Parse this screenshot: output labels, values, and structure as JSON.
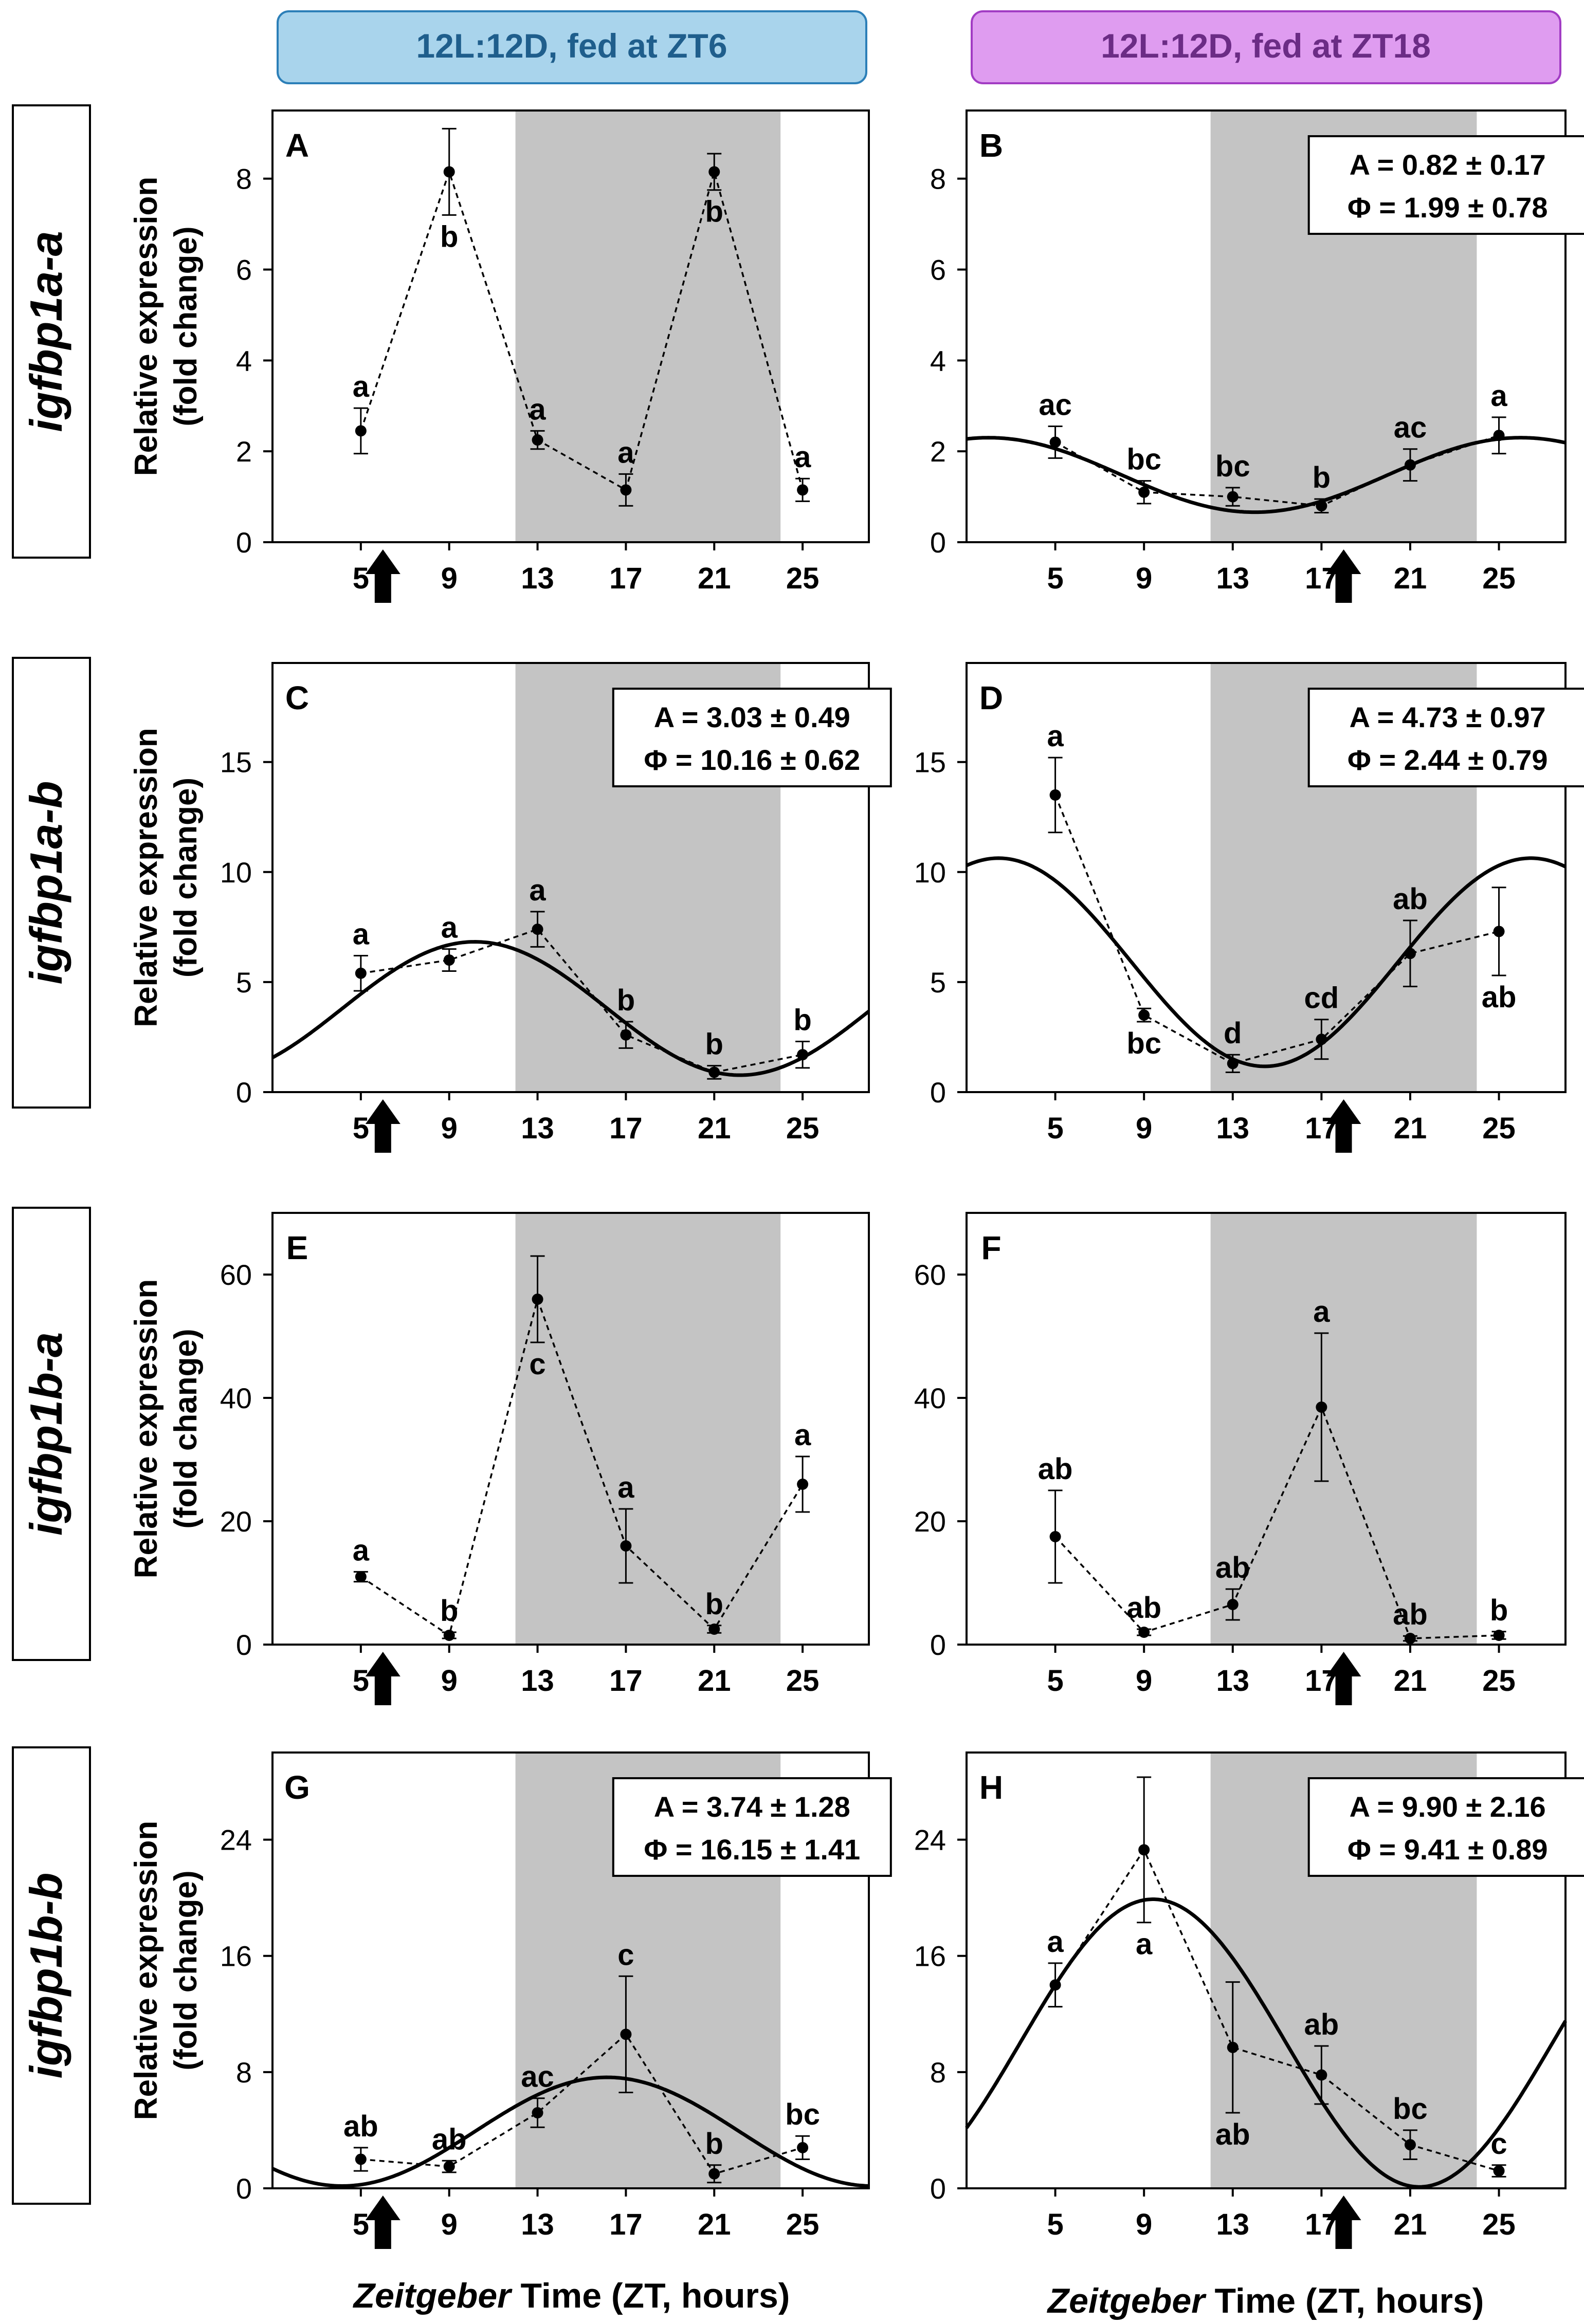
{
  "headers": {
    "left": "12L:12D, fed at ZT6",
    "right": "12L:12D, fed at ZT18",
    "left_colors": {
      "fill": "#a9d4ec",
      "stroke": "#2c7fb8",
      "text": "#1f5e8c"
    },
    "right_colors": {
      "fill": "#df9cf0",
      "stroke": "#a23cc4",
      "text": "#6b2c85"
    }
  },
  "genes": [
    "igfbp1a-a",
    "igfbp1a-b",
    "igfbp1b-a",
    "igfbp1b-b"
  ],
  "ylabel_line1": "Relative expression",
  "ylabel_line2": "(fold change)",
  "xlabel_italic": "Zeitgeber",
  "xlabel_rest": " Time (ZT, hours)",
  "chart_data": [
    {
      "id": "A",
      "type": "line",
      "xticks": [
        5,
        9,
        13,
        17,
        21,
        25
      ],
      "xlim": [
        1,
        28
      ],
      "ylim": [
        0,
        9.5
      ],
      "yticks": [
        0,
        2,
        4,
        6,
        8
      ],
      "dark_period": [
        12,
        24
      ],
      "feeding_zt": 6,
      "x": [
        5,
        9,
        13,
        17,
        21,
        25
      ],
      "values": [
        2.45,
        8.15,
        2.25,
        1.15,
        8.15,
        1.15
      ],
      "errors": [
        0.5,
        0.95,
        0.2,
        0.35,
        0.4,
        0.25
      ],
      "sig": [
        "a",
        "b",
        "a",
        "a",
        "b",
        "a"
      ],
      "sig_pos": [
        "above",
        "below",
        "above",
        "above",
        "below",
        "above"
      ],
      "fit": null
    },
    {
      "id": "B",
      "type": "line",
      "xticks": [
        5,
        9,
        13,
        17,
        21,
        25
      ],
      "xlim": [
        1,
        28
      ],
      "ylim": [
        0,
        9.5
      ],
      "yticks": [
        0,
        2,
        4,
        6,
        8
      ],
      "dark_period": [
        12,
        24
      ],
      "feeding_zt": 18,
      "x": [
        5,
        9,
        13,
        17,
        21,
        25
      ],
      "values": [
        2.2,
        1.1,
        1.0,
        0.8,
        1.7,
        2.35
      ],
      "errors": [
        0.35,
        0.25,
        0.2,
        0.15,
        0.35,
        0.4
      ],
      "sig": [
        "ac",
        "bc",
        "bc",
        "b",
        "ac",
        "a"
      ],
      "sig_pos": [
        "above",
        "above",
        "above",
        "above",
        "above",
        "above"
      ],
      "stats": [
        "A = 0.82 ± 0.17",
        "Φ = 1.99 ± 0.78"
      ],
      "fit": {
        "mesor": 1.48,
        "amplitude": 0.82,
        "acrophase": 1.99
      }
    },
    {
      "id": "C",
      "type": "line",
      "xticks": [
        5,
        9,
        13,
        17,
        21,
        25
      ],
      "xlim": [
        1,
        28
      ],
      "ylim": [
        0,
        19.5
      ],
      "yticks": [
        0,
        5,
        10,
        15
      ],
      "dark_period": [
        12,
        24
      ],
      "feeding_zt": 6,
      "x": [
        5,
        9,
        13,
        17,
        21,
        25
      ],
      "values": [
        5.4,
        6.0,
        7.4,
        2.6,
        0.9,
        1.7
      ],
      "errors": [
        0.8,
        0.5,
        0.8,
        0.6,
        0.3,
        0.6
      ],
      "sig": [
        "a",
        "a",
        "a",
        "b",
        "b",
        "b"
      ],
      "sig_pos": [
        "above",
        "above",
        "above",
        "above",
        "above",
        "above"
      ],
      "stats": [
        "A = 3.03 ± 0.49",
        "Φ = 10.16 ± 0.62"
      ],
      "fit": {
        "mesor": 3.8,
        "amplitude": 3.03,
        "acrophase": 10.16
      }
    },
    {
      "id": "D",
      "type": "line",
      "xticks": [
        5,
        9,
        13,
        17,
        21,
        25
      ],
      "xlim": [
        1,
        28
      ],
      "ylim": [
        0,
        19.5
      ],
      "yticks": [
        0,
        5,
        10,
        15
      ],
      "dark_period": [
        12,
        24
      ],
      "feeding_zt": 18,
      "x": [
        5,
        9,
        13,
        17,
        21,
        25
      ],
      "values": [
        13.5,
        3.5,
        1.3,
        2.4,
        6.3,
        7.3
      ],
      "errors": [
        1.7,
        0.3,
        0.4,
        0.9,
        1.5,
        2.0
      ],
      "sig": [
        "a",
        "bc",
        "d",
        "cd",
        "ab",
        "ab"
      ],
      "sig_pos": [
        "above",
        "below",
        "above",
        "above",
        "above",
        "below"
      ],
      "stats": [
        "A = 4.73 ± 0.97",
        "Φ = 2.44 ± 0.79"
      ],
      "fit": {
        "mesor": 5.9,
        "amplitude": 4.73,
        "acrophase": 2.44
      }
    },
    {
      "id": "E",
      "type": "line",
      "xticks": [
        5,
        9,
        13,
        17,
        21,
        25
      ],
      "xlim": [
        1,
        28
      ],
      "ylim": [
        0,
        70
      ],
      "yticks": [
        0,
        20,
        40,
        60
      ],
      "dark_period": [
        12,
        24
      ],
      "feeding_zt": 6,
      "x": [
        5,
        9,
        13,
        17,
        21,
        25
      ],
      "values": [
        11,
        1.5,
        56,
        16,
        2.5,
        26
      ],
      "errors": [
        0.8,
        0.5,
        7,
        6,
        0.6,
        4.5
      ],
      "sig": [
        "a",
        "b",
        "c",
        "a",
        "b",
        "a"
      ],
      "sig_pos": [
        "above",
        "above",
        "below",
        "above",
        "above",
        "above"
      ],
      "fit": null
    },
    {
      "id": "F",
      "type": "line",
      "xticks": [
        5,
        9,
        13,
        17,
        21,
        25
      ],
      "xlim": [
        1,
        28
      ],
      "ylim": [
        0,
        70
      ],
      "yticks": [
        0,
        20,
        40,
        60
      ],
      "dark_period": [
        12,
        24
      ],
      "feeding_zt": 18,
      "x": [
        5,
        9,
        13,
        17,
        21,
        25
      ],
      "values": [
        17.5,
        2,
        6.5,
        38.5,
        1,
        1.5
      ],
      "errors": [
        7.5,
        0.5,
        2.5,
        12,
        0.4,
        0.6
      ],
      "sig": [
        "ab",
        "ab",
        "ab",
        "a",
        "ab",
        "b"
      ],
      "sig_pos": [
        "above",
        "above",
        "above",
        "above",
        "above",
        "above"
      ],
      "fit": null
    },
    {
      "id": "G",
      "type": "line",
      "xticks": [
        5,
        9,
        13,
        17,
        21,
        25
      ],
      "xlim": [
        1,
        28
      ],
      "ylim": [
        0,
        30
      ],
      "yticks": [
        0,
        8,
        16,
        24
      ],
      "dark_period": [
        12,
        24
      ],
      "feeding_zt": 6,
      "x": [
        5,
        9,
        13,
        17,
        21,
        25
      ],
      "values": [
        2,
        1.5,
        5.2,
        10.6,
        1,
        2.8
      ],
      "errors": [
        0.8,
        0.4,
        1,
        4,
        0.6,
        0.8
      ],
      "sig": [
        "ab",
        "ab",
        "ac",
        "c",
        "b",
        "bc"
      ],
      "sig_pos": [
        "above",
        "above",
        "above",
        "above",
        "above",
        "above"
      ],
      "stats": [
        "A = 3.74 ± 1.28",
        "Φ = 16.15 ± 1.41"
      ],
      "fit": {
        "mesor": 3.9,
        "amplitude": 3.74,
        "acrophase": 16.15
      }
    },
    {
      "id": "H",
      "type": "line",
      "xticks": [
        5,
        9,
        13,
        17,
        21,
        25
      ],
      "xlim": [
        1,
        28
      ],
      "ylim": [
        0,
        30
      ],
      "yticks": [
        0,
        8,
        16,
        24
      ],
      "dark_period": [
        12,
        24
      ],
      "feeding_zt": 18,
      "x": [
        5,
        9,
        13,
        17,
        21,
        25
      ],
      "values": [
        14,
        23.3,
        9.7,
        7.8,
        3,
        1.2
      ],
      "errors": [
        1.5,
        5,
        4.5,
        2,
        1,
        0.4
      ],
      "sig": [
        "a",
        "a",
        "ab",
        "ab",
        "bc",
        "c"
      ],
      "sig_pos": [
        "above",
        "below",
        "below",
        "above",
        "above",
        "above"
      ],
      "stats": [
        "A = 9.90 ± 2.16",
        "Φ = 9.41 ± 0.89"
      ],
      "fit": {
        "mesor": 10.0,
        "amplitude": 9.9,
        "acrophase": 9.41
      }
    }
  ]
}
